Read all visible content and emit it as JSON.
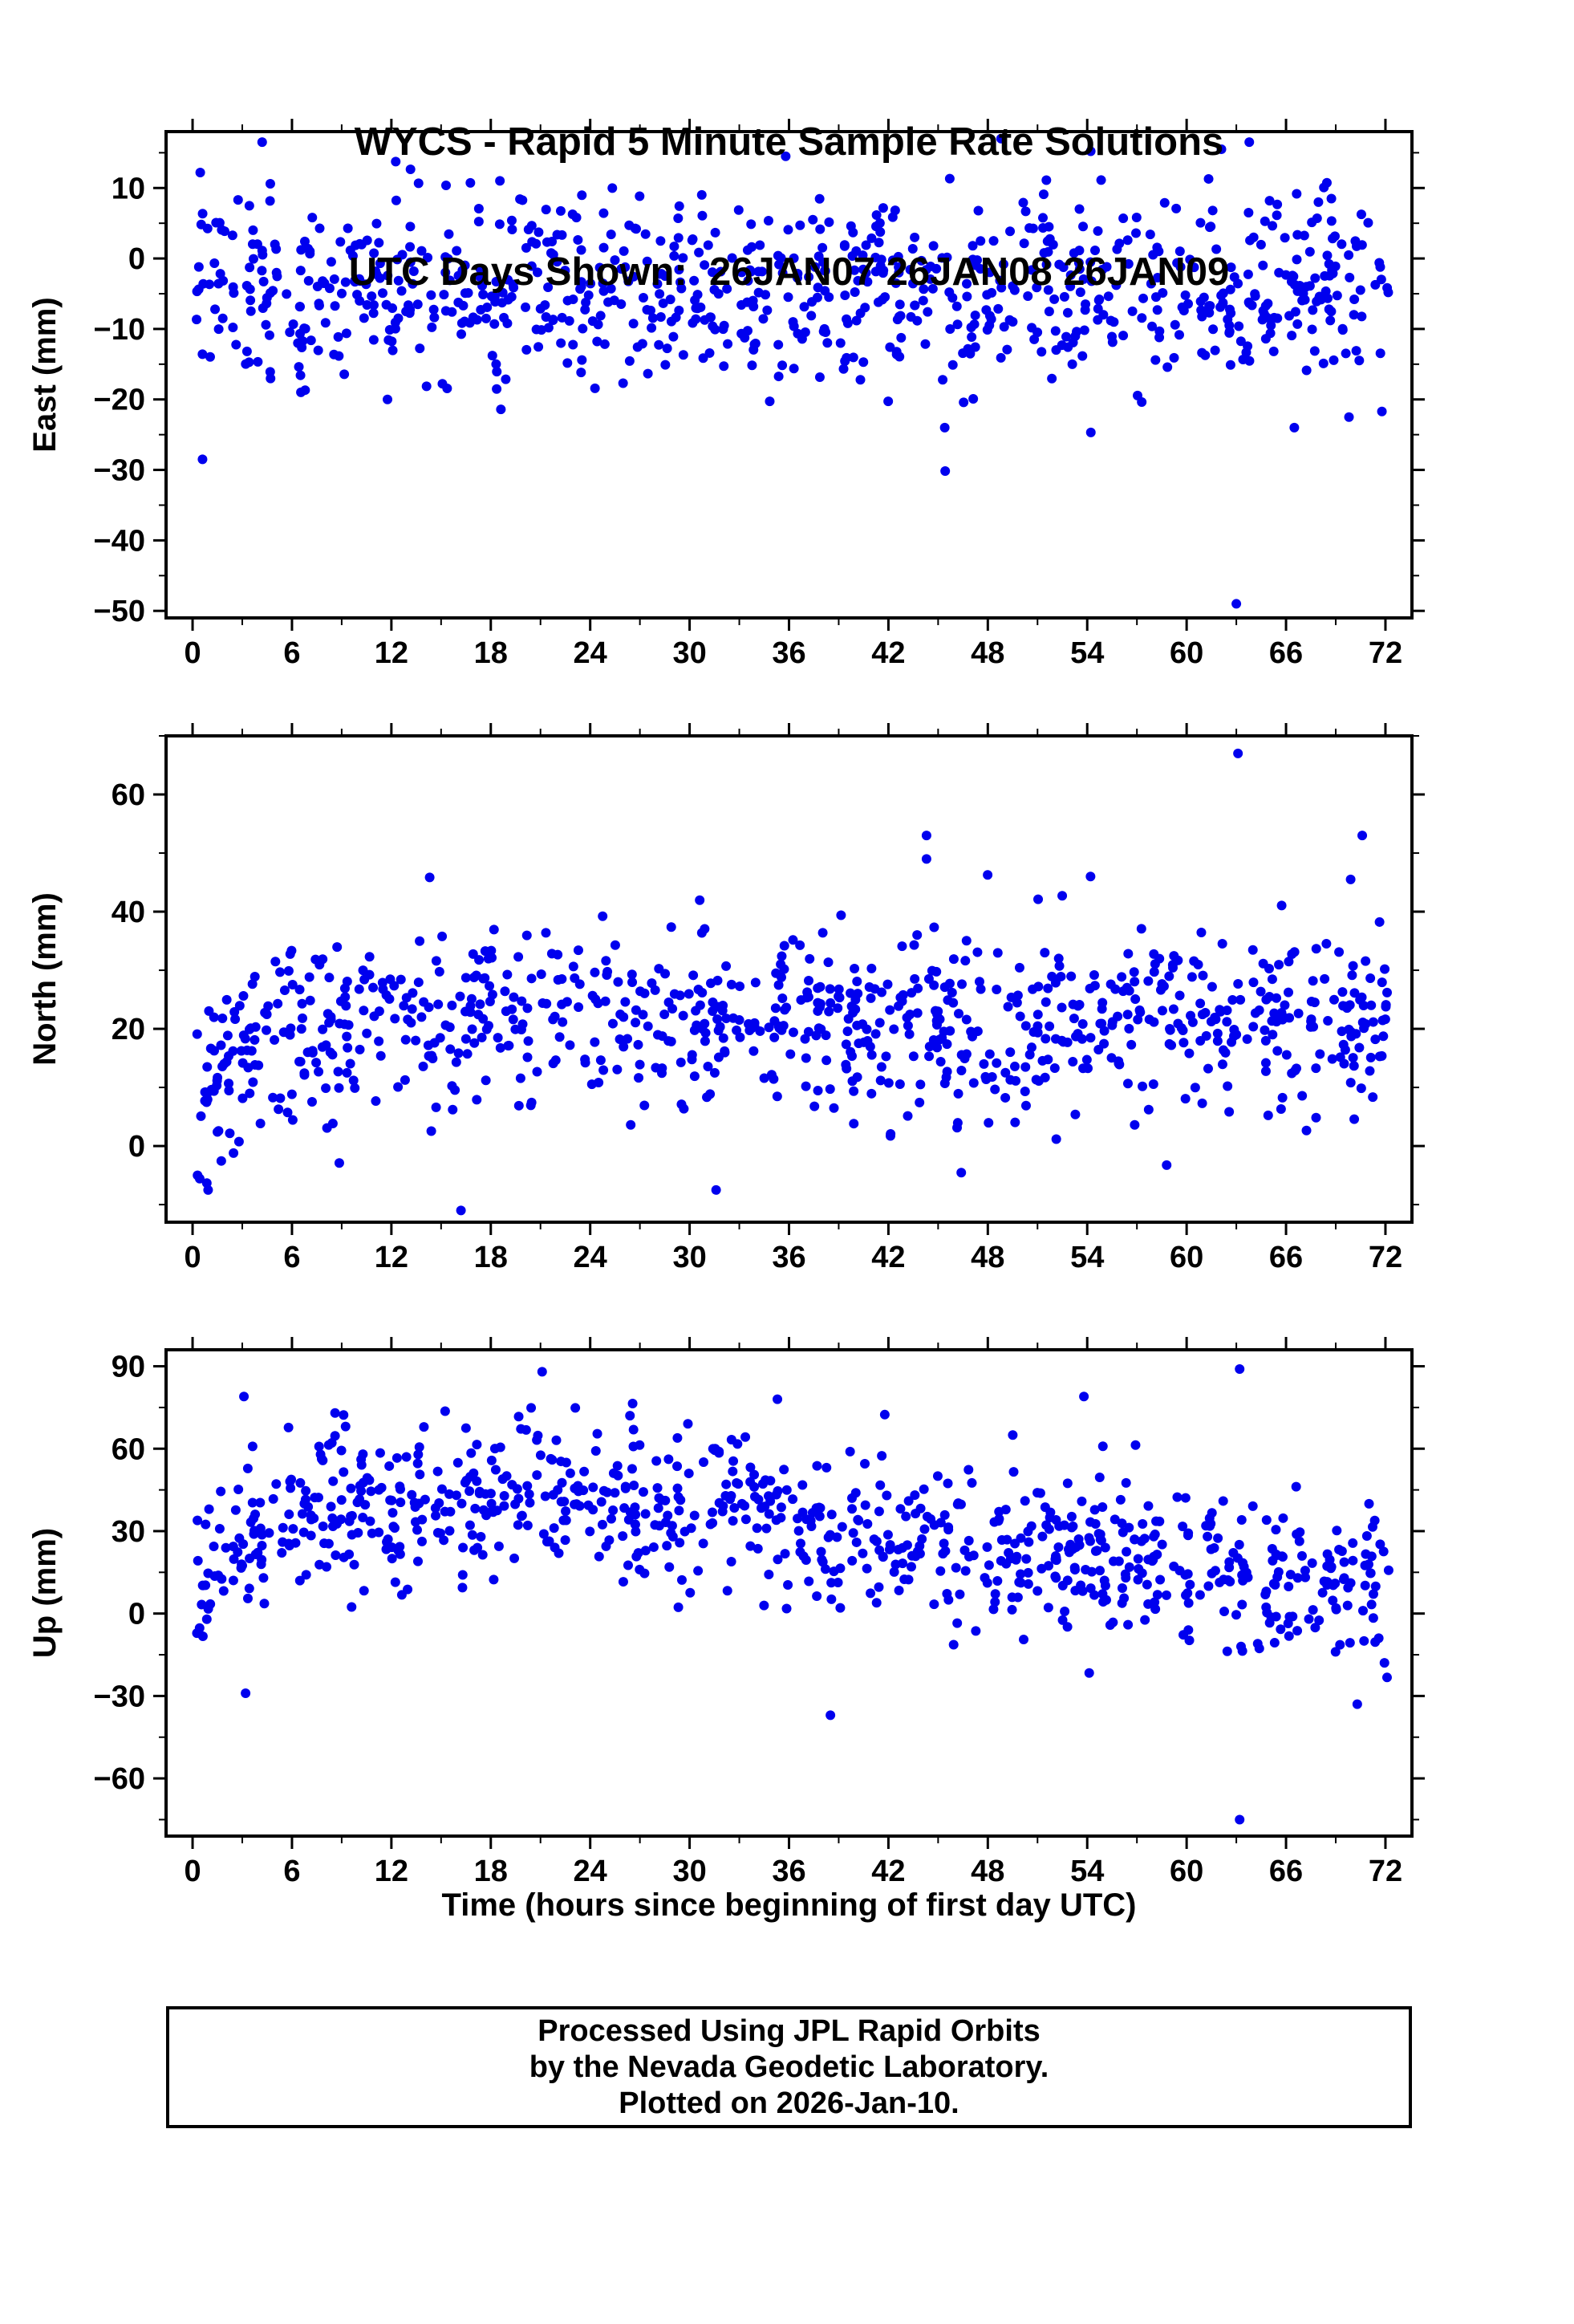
{
  "title": {
    "line1": "WYCS - Rapid 5 Minute Sample Rate Solutions",
    "line2": "UTC Days Shown:  26JAN07 26JAN08 26JAN09"
  },
  "station": "WYCS",
  "utc_days": [
    "26JAN07",
    "26JAN08",
    "26JAN09"
  ],
  "xlabel": "Time (hours since beginning of first day UTC)",
  "footer": {
    "lines": [
      "Processed Using JPL Rapid Orbits",
      "by the Nevada Geodetic Laboratory.",
      "Plotted on 2026-Jan-10."
    ]
  },
  "colors": {
    "marker": "#0000EE",
    "frame": "#000000",
    "background": "#FFFFFF"
  },
  "chart_data": [
    {
      "type": "scatter",
      "name": "east",
      "ylabel": "East (mm)",
      "ylim": [
        -51,
        18
      ],
      "yticks": [
        -50,
        -40,
        -30,
        -20,
        -10,
        0,
        10
      ],
      "ytick_minor_step": 5,
      "xlim": [
        -1.6,
        73.6
      ],
      "xticks": [
        0,
        6,
        12,
        18,
        24,
        30,
        36,
        42,
        48,
        54,
        60,
        66,
        72
      ],
      "xtick_minor_step": 3,
      "grid": false,
      "legend": "none",
      "cloud": {
        "count": 850,
        "x_range": [
          0.1,
          72.2
        ],
        "mean_profile": [
          [
            0,
            -4.5
          ],
          [
            72,
            -4.5
          ]
        ],
        "sigma": 6.8,
        "seed": 11
      },
      "outliers": [
        [
          0.6,
          -28.5
        ],
        [
          63.0,
          -49.0
        ],
        [
          45.4,
          -24.0
        ],
        [
          66.5,
          -24.0
        ],
        [
          69.8,
          -22.5
        ],
        [
          4.2,
          16.5
        ],
        [
          48.8,
          17.0
        ],
        [
          62.1,
          15.5
        ],
        [
          35.8,
          14.5
        ]
      ]
    },
    {
      "type": "scatter",
      "name": "north",
      "ylabel": "North (mm)",
      "ylim": [
        -13,
        70
      ],
      "yticks": [
        0,
        20,
        40,
        60
      ],
      "ytick_minor_step": 10,
      "xlim": [
        -1.6,
        73.6
      ],
      "xticks": [
        0,
        6,
        12,
        18,
        24,
        30,
        36,
        42,
        48,
        54,
        60,
        66,
        72
      ],
      "xtick_minor_step": 3,
      "grid": false,
      "legend": "none",
      "cloud": {
        "count": 850,
        "x_range": [
          0.1,
          72.2
        ],
        "mean_profile": [
          [
            0,
            5
          ],
          [
            2,
            15
          ],
          [
            6,
            20
          ],
          [
            12,
            21
          ],
          [
            24,
            22
          ],
          [
            36,
            22
          ],
          [
            48,
            20
          ],
          [
            60,
            22
          ],
          [
            72,
            21
          ]
        ],
        "sigma": 7.5,
        "seed": 22
      },
      "outliers": [
        [
          63.1,
          67.0
        ],
        [
          44.3,
          53.0
        ],
        [
          70.6,
          53.0
        ],
        [
          44.3,
          49.0
        ],
        [
          16.2,
          -11.0
        ],
        [
          31.6,
          -7.5
        ],
        [
          0.3,
          -5.0
        ],
        [
          54.2,
          46.0
        ],
        [
          69.9,
          45.5
        ]
      ]
    },
    {
      "type": "scatter",
      "name": "up",
      "ylabel": "Up (mm)",
      "ylim": [
        -81,
        96
      ],
      "yticks": [
        -60,
        -30,
        0,
        30,
        60,
        90
      ],
      "ytick_minor_step": 15,
      "xlim": [
        -1.6,
        73.6
      ],
      "xticks": [
        0,
        6,
        12,
        18,
        24,
        30,
        36,
        42,
        48,
        54,
        60,
        66,
        72
      ],
      "xtick_minor_step": 3,
      "grid": false,
      "legend": "none",
      "cloud": {
        "count": 850,
        "x_range": [
          0.1,
          72.2
        ],
        "mean_profile": [
          [
            0,
            8
          ],
          [
            2,
            22
          ],
          [
            5,
            32
          ],
          [
            9,
            40
          ],
          [
            14,
            41
          ],
          [
            18,
            43
          ],
          [
            22,
            44
          ],
          [
            26,
            38
          ],
          [
            30,
            35
          ],
          [
            33,
            41
          ],
          [
            36,
            30
          ],
          [
            40,
            27
          ],
          [
            44,
            29
          ],
          [
            48,
            19
          ],
          [
            52,
            22
          ],
          [
            56,
            21
          ],
          [
            60,
            14
          ],
          [
            64,
            10
          ],
          [
            68,
            10
          ],
          [
            72,
            13
          ]
        ],
        "sigma": 14,
        "seed": 33
      },
      "outliers": [
        [
          21.1,
          88.0
        ],
        [
          63.2,
          89.0
        ],
        [
          3.1,
          79.0
        ],
        [
          35.3,
          78.0
        ],
        [
          53.8,
          79.0
        ],
        [
          8.6,
          73.0
        ],
        [
          26.4,
          72.0
        ],
        [
          63.2,
          -75.0
        ],
        [
          38.5,
          -37.0
        ],
        [
          70.3,
          -33.0
        ],
        [
          3.2,
          -29.0
        ]
      ]
    }
  ]
}
